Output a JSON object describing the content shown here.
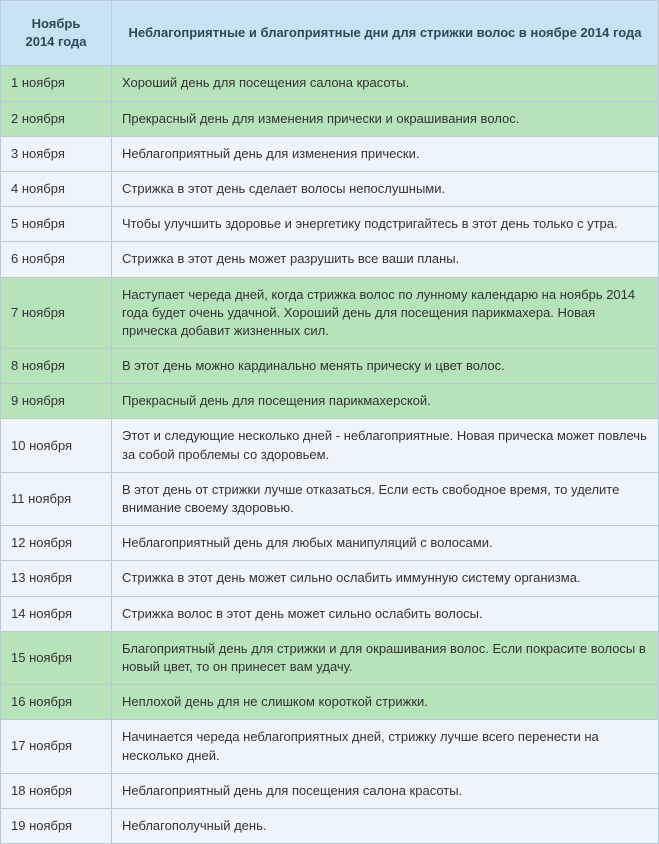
{
  "header": {
    "col1_line1": "Ноябрь",
    "col1_line2": "2014 года",
    "col2": "Неблагоприятные и благоприятные дни для стрижки волос в ноябре 2014 года"
  },
  "colors": {
    "header_bg": "#c9e2f1",
    "green_bg": "#b7e3bb",
    "white_bg": "#eef5fa",
    "border": "#b9cad7"
  },
  "rows": [
    {
      "date": "1 ноября",
      "text": "Хороший день для посещения салона красоты.",
      "color": "green"
    },
    {
      "date": "2 ноября",
      "text": "Прекрасный день для изменения прически и окрашивания волос.",
      "color": "green"
    },
    {
      "date": "3 ноября",
      "text": "Неблагоприятный день для изменения прически.",
      "color": "white"
    },
    {
      "date": "4 ноября",
      "text": "Стрижка в этот день сделает волосы непослушными.",
      "color": "white"
    },
    {
      "date": "5 ноября",
      "text": "Чтобы улучшить здоровье и энергетику подстригайтесь в этот день только с утра.",
      "color": "white"
    },
    {
      "date": "6 ноября",
      "text": "Стрижка в этот день может разрушить все ваши планы.",
      "color": "white"
    },
    {
      "date": "7 ноября",
      "text": "Наступает череда дней, когда стрижка волос по лунному календарю на ноябрь 2014 года будет очень удачной. Хороший день для посещения парикмахера. Новая прическа добавит жизненных сил.",
      "color": "green"
    },
    {
      "date": "8 ноября",
      "text": "В этот день можно кардинально менять прическу и цвет волос.",
      "color": "green"
    },
    {
      "date": "9 ноября",
      "text": "Прекрасный день для посещения парикмахерской.",
      "color": "green"
    },
    {
      "date": "10 ноября",
      "text": "Этот и следующие несколько дней - неблагоприятные. Новая прическа может повлечь за собой проблемы со здоровьем.",
      "color": "white"
    },
    {
      "date": "11 ноября",
      "text": "В этот день от стрижки лучше отказаться. Если есть свободное время, то уделите внимание своему здоровью.",
      "color": "white"
    },
    {
      "date": "12 ноября",
      "text": "Неблагоприятный день для любых манипуляций с волосами.",
      "color": "white"
    },
    {
      "date": "13 ноября",
      "text": "Стрижка в этот день может сильно ослабить иммунную систему организма.",
      "color": "white"
    },
    {
      "date": "14 ноября",
      "text": "Стрижка волос в этот день может сильно ослабить волосы.",
      "color": "white"
    },
    {
      "date": "15 ноября",
      "text": "Благоприятный день для стрижки и для окрашивания волос. Если покрасите волосы в новый цвет, то он принесет вам удачу.",
      "color": "green"
    },
    {
      "date": "16 ноября",
      "text": "Неплохой день для не слишком короткой стрижки.",
      "color": "green"
    },
    {
      "date": "17 ноября",
      "text": "Начинается череда неблагоприятных дней, стрижку лучше всего перенести на несколько дней.",
      "color": "white"
    },
    {
      "date": "18 ноября",
      "text": "Неблагоприятный день для посещения салона красоты.",
      "color": "white"
    },
    {
      "date": "19 ноября",
      "text": "Неблагополучный день.",
      "color": "white"
    }
  ]
}
